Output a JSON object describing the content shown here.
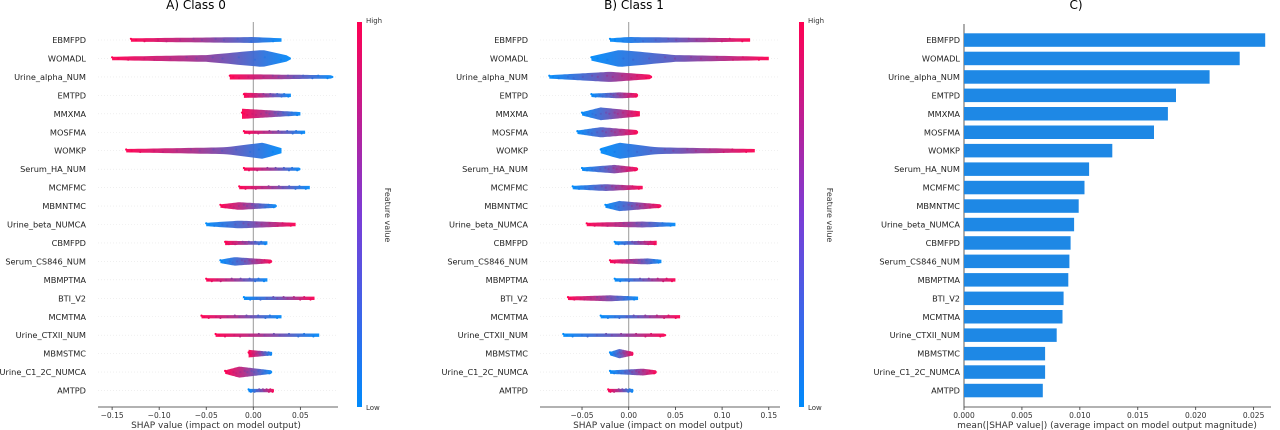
{
  "colors": {
    "low": "#008bfb",
    "high": "#ff0052",
    "bar": "#1e88e5",
    "zero_line": "#999999",
    "grid": "#e6e6e6"
  },
  "chart_data": [
    {
      "type": "scatter",
      "title": "A) Class 0",
      "xlabel": "SHAP value (impact on model output)",
      "xlim": [
        -0.165,
        0.09
      ],
      "xticks": [
        -0.15,
        -0.1,
        -0.05,
        0.0,
        0.05
      ],
      "xtick_labels": [
        "−0.15",
        "−0.10",
        "−0.05",
        "0.00",
        "0.05"
      ],
      "colorbar": {
        "label": "Feature value",
        "high": "High",
        "low": "Low"
      },
      "features": [
        {
          "name": "EBMFPD",
          "range": [
            -0.13,
            0.03
          ],
          "violin": [
            [
              -0.13,
              0.2
            ],
            [
              0.0,
              0.35
            ],
            [
              0.03,
              0.2
            ]
          ],
          "high_side": "left"
        },
        {
          "name": "WOMADL",
          "range": [
            -0.15,
            0.04
          ],
          "violin": [
            [
              -0.15,
              0.2
            ],
            [
              -0.05,
              0.4
            ],
            [
              0.01,
              1.0
            ],
            [
              0.04,
              0.25
            ]
          ],
          "high_side": "left"
        },
        {
          "name": "Urine_alpha_NUM",
          "range": [
            -0.025,
            0.085
          ],
          "violin": [
            [
              -0.025,
              0.3
            ],
            [
              0.0,
              0.3
            ],
            [
              0.085,
              0.2
            ]
          ],
          "high_side": "left"
        },
        {
          "name": "EMTPD",
          "range": [
            -0.01,
            0.04
          ],
          "violin": [
            [
              -0.01,
              0.3
            ],
            [
              0.04,
              0.2
            ]
          ],
          "high_side": "left"
        },
        {
          "name": "MMXMA",
          "range": [
            -0.012,
            0.05
          ],
          "violin": [
            [
              -0.012,
              0.6
            ],
            [
              0.05,
              0.2
            ]
          ],
          "high_side": "left"
        },
        {
          "name": "MOSFMA",
          "range": [
            -0.01,
            0.055
          ],
          "violin": [
            [
              -0.01,
              0.2
            ],
            [
              0.055,
              0.2
            ]
          ],
          "high_side": "left"
        },
        {
          "name": "WOMKP",
          "range": [
            -0.135,
            0.03
          ],
          "violin": [
            [
              -0.135,
              0.2
            ],
            [
              -0.03,
              0.4
            ],
            [
              0.01,
              0.95
            ],
            [
              0.03,
              0.3
            ]
          ],
          "high_side": "left"
        },
        {
          "name": "Serum_HA_NUM",
          "range": [
            -0.01,
            0.05
          ],
          "violin": [
            [
              -0.01,
              0.2
            ],
            [
              0.05,
              0.2
            ]
          ],
          "high_side": "left"
        },
        {
          "name": "MCMFMC",
          "range": [
            -0.015,
            0.06
          ],
          "violin": [
            [
              -0.015,
              0.2
            ],
            [
              0.06,
              0.2
            ]
          ],
          "high_side": "left"
        },
        {
          "name": "MBMNTMC",
          "range": [
            -0.035,
            0.025
          ],
          "violin": [
            [
              -0.035,
              0.2
            ],
            [
              -0.015,
              0.45
            ],
            [
              0.025,
              0.2
            ]
          ],
          "high_side": "left"
        },
        {
          "name": "Urine_beta_NUMCA",
          "range": [
            -0.05,
            0.045
          ],
          "violin": [
            [
              -0.05,
              0.2
            ],
            [
              -0.015,
              0.45
            ],
            [
              0.045,
              0.2
            ]
          ],
          "high_side": "right"
        },
        {
          "name": "CBMFPD",
          "range": [
            -0.03,
            0.015
          ],
          "violin": [
            [
              -0.03,
              0.25
            ],
            [
              0.015,
              0.2
            ]
          ],
          "high_side": "left"
        },
        {
          "name": "Serum_CS846_NUM",
          "range": [
            -0.035,
            0.02
          ],
          "violin": [
            [
              -0.035,
              0.2
            ],
            [
              -0.02,
              0.5
            ],
            [
              0.02,
              0.2
            ]
          ],
          "high_side": "right"
        },
        {
          "name": "MBMPTMA",
          "range": [
            -0.05,
            0.015
          ],
          "violin": [
            [
              -0.05,
              0.2
            ],
            [
              0.015,
              0.2
            ]
          ],
          "high_side": "left"
        },
        {
          "name": "BTI_V2",
          "range": [
            -0.01,
            0.065
          ],
          "violin": [
            [
              -0.01,
              0.2
            ],
            [
              0.065,
              0.2
            ]
          ],
          "high_side": "right"
        },
        {
          "name": "MCMTMA",
          "range": [
            -0.055,
            0.03
          ],
          "violin": [
            [
              -0.055,
              0.2
            ],
            [
              0.03,
              0.2
            ]
          ],
          "high_side": "left"
        },
        {
          "name": "Urine_CTXII_NUM",
          "range": [
            -0.04,
            0.07
          ],
          "violin": [
            [
              -0.04,
              0.2
            ],
            [
              0.07,
              0.2
            ]
          ],
          "high_side": "left"
        },
        {
          "name": "MBMSTMC",
          "range": [
            -0.005,
            0.02
          ],
          "violin": [
            [
              -0.005,
              0.45
            ],
            [
              0.02,
              0.2
            ]
          ],
          "high_side": "left"
        },
        {
          "name": "Urine_C1_2C_NUMCA",
          "range": [
            -0.03,
            0.02
          ],
          "violin": [
            [
              -0.03,
              0.2
            ],
            [
              -0.015,
              0.65
            ],
            [
              0.02,
              0.2
            ]
          ],
          "high_side": "left"
        },
        {
          "name": "AMTPD",
          "range": [
            -0.005,
            0.022
          ],
          "violin": [
            [
              -0.005,
              0.2
            ],
            [
              0.022,
              0.2
            ]
          ],
          "high_side": "right"
        }
      ]
    },
    {
      "type": "scatter",
      "title": "B) Class 1",
      "xlabel": "SHAP value (impact on model output)",
      "xlim": [
        -0.095,
        0.162
      ],
      "xticks": [
        -0.05,
        0.0,
        0.05,
        0.1,
        0.15
      ],
      "xtick_labels": [
        "−0.05",
        "0.00",
        "0.05",
        "0.10",
        "0.15"
      ],
      "colorbar": {
        "label": "Feature value",
        "high": "High",
        "low": "Low"
      },
      "features": [
        {
          "name": "EBMFPD",
          "range": [
            -0.02,
            0.13
          ],
          "violin": [
            [
              -0.02,
              0.2
            ],
            [
              0.0,
              0.35
            ],
            [
              0.13,
              0.2
            ]
          ],
          "high_side": "right"
        },
        {
          "name": "WOMADL",
          "range": [
            -0.04,
            0.15
          ],
          "violin": [
            [
              -0.04,
              0.25
            ],
            [
              -0.01,
              1.0
            ],
            [
              0.05,
              0.4
            ],
            [
              0.15,
              0.2
            ]
          ],
          "high_side": "right"
        },
        {
          "name": "Urine_alpha_NUM",
          "range": [
            -0.085,
            0.025
          ],
          "violin": [
            [
              -0.085,
              0.2
            ],
            [
              -0.02,
              0.6
            ],
            [
              0.025,
              0.25
            ]
          ],
          "high_side": "right"
        },
        {
          "name": "EMTPD",
          "range": [
            -0.04,
            0.01
          ],
          "violin": [
            [
              -0.04,
              0.2
            ],
            [
              -0.01,
              0.35
            ],
            [
              0.01,
              0.25
            ]
          ],
          "high_side": "right"
        },
        {
          "name": "MMXMA",
          "range": [
            -0.05,
            0.012
          ],
          "violin": [
            [
              -0.05,
              0.2
            ],
            [
              -0.03,
              0.75
            ],
            [
              0.012,
              0.3
            ]
          ],
          "high_side": "right"
        },
        {
          "name": "MOSFMA",
          "range": [
            -0.055,
            0.01
          ],
          "violin": [
            [
              -0.055,
              0.2
            ],
            [
              -0.03,
              0.6
            ],
            [
              0.01,
              0.25
            ]
          ],
          "high_side": "right"
        },
        {
          "name": "WOMKP",
          "range": [
            -0.03,
            0.135
          ],
          "violin": [
            [
              -0.03,
              0.3
            ],
            [
              -0.01,
              0.95
            ],
            [
              0.03,
              0.4
            ],
            [
              0.135,
              0.2
            ]
          ],
          "high_side": "right"
        },
        {
          "name": "Serum_HA_NUM",
          "range": [
            -0.05,
            0.01
          ],
          "violin": [
            [
              -0.05,
              0.2
            ],
            [
              -0.015,
              0.5
            ],
            [
              0.01,
              0.2
            ]
          ],
          "high_side": "right"
        },
        {
          "name": "MCMFMC",
          "range": [
            -0.06,
            0.015
          ],
          "violin": [
            [
              -0.06,
              0.2
            ],
            [
              -0.025,
              0.4
            ],
            [
              0.015,
              0.2
            ]
          ],
          "high_side": "right"
        },
        {
          "name": "MBMNTMC",
          "range": [
            -0.025,
            0.035
          ],
          "violin": [
            [
              -0.025,
              0.2
            ],
            [
              -0.01,
              0.6
            ],
            [
              0.035,
              0.2
            ]
          ],
          "high_side": "right"
        },
        {
          "name": "Urine_beta_NUMCA",
          "range": [
            -0.045,
            0.05
          ],
          "violin": [
            [
              -0.045,
              0.2
            ],
            [
              0.015,
              0.35
            ],
            [
              0.05,
              0.2
            ]
          ],
          "high_side": "left"
        },
        {
          "name": "CBMFPD",
          "range": [
            -0.015,
            0.03
          ],
          "violin": [
            [
              -0.015,
              0.2
            ],
            [
              0.03,
              0.25
            ]
          ],
          "high_side": "right"
        },
        {
          "name": "Serum_CS846_NUM",
          "range": [
            -0.02,
            0.035
          ],
          "violin": [
            [
              -0.02,
              0.2
            ],
            [
              0.02,
              0.35
            ],
            [
              0.035,
              0.2
            ]
          ],
          "high_side": "left"
        },
        {
          "name": "MBMPTMA",
          "range": [
            -0.015,
            0.05
          ],
          "violin": [
            [
              -0.015,
              0.2
            ],
            [
              0.05,
              0.2
            ]
          ],
          "high_side": "right"
        },
        {
          "name": "BTI_V2",
          "range": [
            -0.065,
            0.01
          ],
          "violin": [
            [
              -0.065,
              0.2
            ],
            [
              -0.02,
              0.35
            ],
            [
              0.01,
              0.2
            ]
          ],
          "high_side": "left"
        },
        {
          "name": "MCMTMA",
          "range": [
            -0.03,
            0.055
          ],
          "violin": [
            [
              -0.03,
              0.2
            ],
            [
              0.055,
              0.2
            ]
          ],
          "high_side": "right"
        },
        {
          "name": "Urine_CTXII_NUM",
          "range": [
            -0.07,
            0.04
          ],
          "violin": [
            [
              -0.07,
              0.2
            ],
            [
              0.04,
              0.2
            ]
          ],
          "high_side": "right"
        },
        {
          "name": "MBMSTMC",
          "range": [
            -0.02,
            0.005
          ],
          "violin": [
            [
              -0.02,
              0.2
            ],
            [
              -0.01,
              0.55
            ],
            [
              0.005,
              0.2
            ]
          ],
          "high_side": "right"
        },
        {
          "name": "Urine_C1_2C_NUMCA",
          "range": [
            -0.02,
            0.03
          ],
          "violin": [
            [
              -0.02,
              0.2
            ],
            [
              0.015,
              0.4
            ],
            [
              0.03,
              0.2
            ]
          ],
          "high_side": "right"
        },
        {
          "name": "AMTPD",
          "range": [
            -0.022,
            0.005
          ],
          "violin": [
            [
              -0.022,
              0.2
            ],
            [
              0.005,
              0.2
            ]
          ],
          "high_side": "left"
        }
      ]
    },
    {
      "type": "bar",
      "title": "C)",
      "xlabel": "mean(|SHAP value|) (average impact on model output magnitude)",
      "xlim": [
        0,
        0.0265
      ],
      "xticks": [
        0.0,
        0.005,
        0.01,
        0.015,
        0.02,
        0.025
      ],
      "xtick_labels": [
        "0.000",
        "0.005",
        "0.010",
        "0.015",
        "0.020",
        "0.025"
      ],
      "categories": [
        "EBMFPD",
        "WOMADL",
        "Urine_alpha_NUM",
        "EMTPD",
        "MMXMA",
        "MOSFMA",
        "WOMKP",
        "Serum_HA_NUM",
        "MCMFMC",
        "MBMNTMC",
        "Urine_beta_NUMCA",
        "CBMFPD",
        "Serum_CS846_NUM",
        "MBMPTMA",
        "BTI_V2",
        "MCMTMA",
        "Urine_CTXII_NUM",
        "MBMSTMC",
        "Urine_C1_2C_NUMCA",
        "AMTPD"
      ],
      "values": [
        0.026,
        0.0238,
        0.0212,
        0.0183,
        0.0176,
        0.0164,
        0.0128,
        0.0108,
        0.0104,
        0.0099,
        0.0095,
        0.0092,
        0.0091,
        0.009,
        0.0086,
        0.0085,
        0.008,
        0.007,
        0.007,
        0.0068
      ]
    }
  ]
}
